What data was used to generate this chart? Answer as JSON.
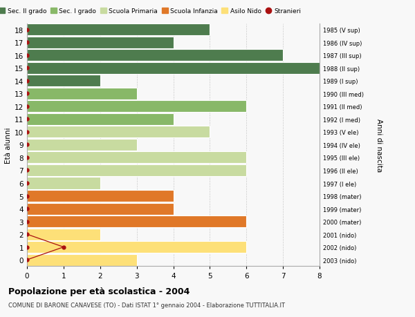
{
  "ages": [
    0,
    1,
    2,
    3,
    4,
    5,
    6,
    7,
    8,
    9,
    10,
    11,
    12,
    13,
    14,
    15,
    16,
    17,
    18
  ],
  "right_labels": [
    "2003 (nido)",
    "2002 (nido)",
    "2001 (nido)",
    "2000 (mater)",
    "1999 (mater)",
    "1998 (mater)",
    "1997 (I ele)",
    "1996 (II ele)",
    "1995 (III ele)",
    "1994 (IV ele)",
    "1993 (V ele)",
    "1992 (I med)",
    "1991 (II med)",
    "1990 (III med)",
    "1989 (I sup)",
    "1988 (II sup)",
    "1987 (III sup)",
    "1986 (IV sup)",
    "1985 (V sup)"
  ],
  "bar_values": [
    3,
    6,
    2,
    6,
    4,
    4,
    2,
    6,
    6,
    3,
    5,
    4,
    6,
    3,
    2,
    8,
    7,
    4,
    5
  ],
  "bar_colors": [
    "#fde078",
    "#fde078",
    "#fde078",
    "#e07828",
    "#e07828",
    "#e07828",
    "#c8dba0",
    "#c8dba0",
    "#c8dba0",
    "#c8dba0",
    "#c8dba0",
    "#88b868",
    "#88b868",
    "#88b868",
    "#4e7c4e",
    "#4e7c4e",
    "#4e7c4e",
    "#4e7c4e",
    "#4e7c4e"
  ],
  "stranieri_line_x": [
    0,
    1,
    0
  ],
  "stranieri_line_y": [
    0,
    1,
    2
  ],
  "stranieri_dot_x": [
    0,
    0,
    0,
    0,
    0,
    0,
    0,
    0,
    0,
    0,
    0,
    0,
    0,
    0,
    0,
    0,
    0,
    0,
    0
  ],
  "stranieri_dot_y": [
    0,
    1,
    2,
    3,
    4,
    5,
    6,
    7,
    8,
    9,
    10,
    11,
    12,
    13,
    14,
    15,
    16,
    17,
    18
  ],
  "stranieri_special_x": 1,
  "stranieri_special_y": 1,
  "legend_labels": [
    "Sec. II grado",
    "Sec. I grado",
    "Scuola Primaria",
    "Scuola Infanzia",
    "Asilo Nido",
    "Stranieri"
  ],
  "legend_colors": [
    "#4e7c4e",
    "#88b868",
    "#c8dba0",
    "#e07828",
    "#fde078",
    "#aa1111"
  ],
  "ylabel": "Età alunni",
  "right_ylabel": "Anni di nascita",
  "title": "Popolazione per età scolastica - 2004",
  "subtitle": "COMUNE DI BARONE CANAVESE (TO) - Dati ISTAT 1° gennaio 2004 - Elaborazione TUTTITALIA.IT",
  "xlim": [
    0,
    8
  ],
  "ylim": [
    -0.5,
    18.5
  ],
  "bg_color": "#f8f8f8",
  "bar_height": 0.92,
  "grid_color": "#cccccc",
  "stranieri_color": "#aa1111"
}
